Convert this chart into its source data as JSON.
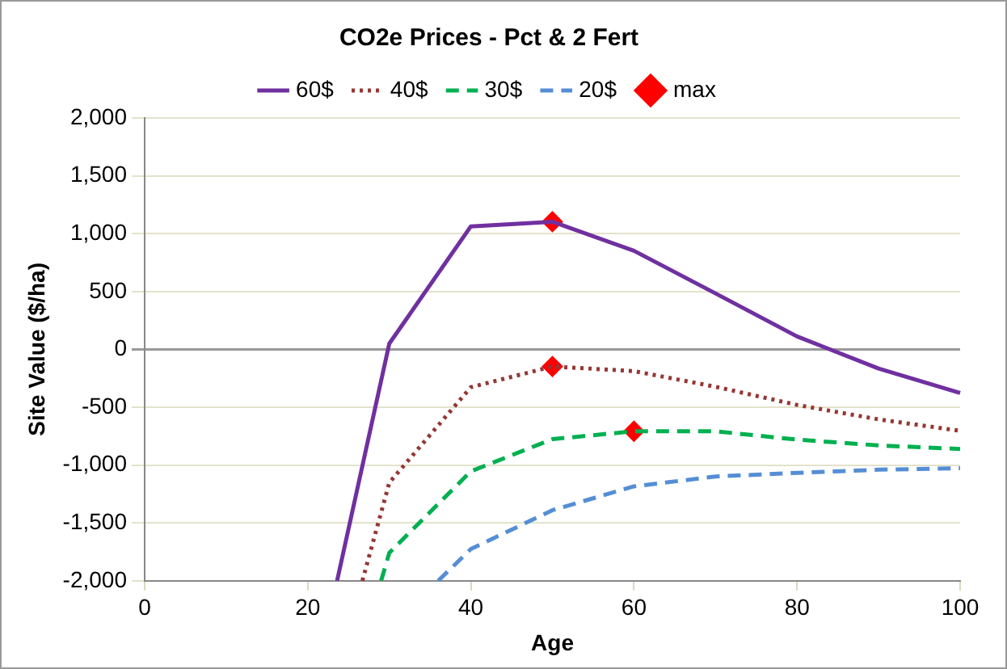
{
  "chart_data": {
    "type": "line",
    "title": "CO2e Prices - Pct & 2 Fert",
    "xlabel": "Age",
    "ylabel": "Site Value ($/ha)",
    "xlim": [
      0,
      100
    ],
    "xticks": [
      0,
      20,
      40,
      60,
      80,
      100
    ],
    "ylim": [
      -2000,
      2000
    ],
    "yticks": [
      {
        "value": -2000,
        "label": "-2,000"
      },
      {
        "value": -1500,
        "label": "-1,500"
      },
      {
        "value": -1000,
        "label": "-1,000"
      },
      {
        "value": -500,
        "label": "-500"
      },
      0,
      500,
      {
        "value": 1000,
        "label": "1,000"
      },
      {
        "value": 1500,
        "label": "1,500"
      },
      {
        "value": 2000,
        "label": "2,000"
      }
    ],
    "grid": "y",
    "legend": "top",
    "marker": "none",
    "series": [
      {
        "name": "60$",
        "color": "#7030a0",
        "line_style": "solid",
        "x": [
          23.6,
          30,
          40,
          50,
          60,
          70,
          80,
          90,
          100
        ],
        "values": [
          -2000,
          50,
          1063,
          1103,
          852,
          484,
          112,
          -166,
          -377
        ]
      },
      {
        "name": "40$",
        "color": "#953735",
        "line_style": "dotted",
        "x": [
          26.7,
          30,
          40,
          50,
          60,
          70,
          80,
          90,
          100
        ],
        "values": [
          -2000,
          -1152,
          -327,
          -148,
          -188,
          -323,
          -480,
          -605,
          -704
        ]
      },
      {
        "name": "30$",
        "color": "#00b050",
        "line_style": "dashed",
        "x": [
          29,
          30,
          40,
          50,
          60,
          70,
          80,
          90,
          100
        ],
        "values": [
          -2000,
          -1758,
          -1054,
          -776,
          -708,
          -708,
          -780,
          -830,
          -861
        ]
      },
      {
        "name": "20$",
        "color": "#558ed5",
        "line_style": "dashed",
        "x": [
          36,
          40,
          50,
          60,
          70,
          80,
          90,
          100
        ],
        "values": [
          -2000,
          -1726,
          -1390,
          -1184,
          -1099,
          -1067,
          -1040,
          -1027
        ]
      },
      {
        "name": "max",
        "type": "scatter",
        "color": "#ff0000",
        "marker": "diamond",
        "x": [
          50,
          50,
          60
        ],
        "values": [
          1103,
          -148,
          -708
        ]
      }
    ]
  }
}
